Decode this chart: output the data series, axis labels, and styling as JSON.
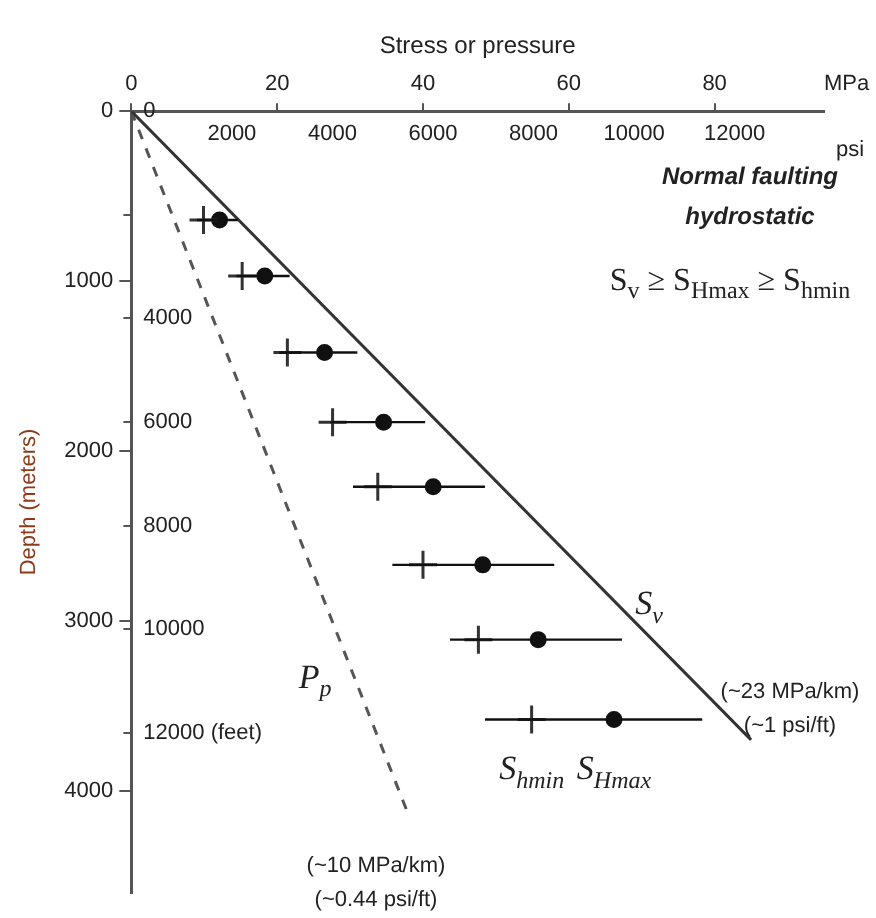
{
  "chart_data": {
    "type": "scatter",
    "xlabel": "Stress or pressure",
    "ylabel": "Depth (meters)",
    "xlim": [
      0,
      95
    ],
    "xticks": [
      0,
      20,
      40,
      60,
      80
    ],
    "x2lim": [
      0,
      13779
    ],
    "x2ticks": [
      2000,
      4000,
      6000,
      8000,
      10000,
      12000
    ],
    "ylim": [
      4600,
      0
    ],
    "yticks": [
      0,
      1000,
      2000,
      3000,
      4000
    ],
    "y2lim": [
      15092,
      0
    ],
    "y2ticks": [
      0,
      {
        "value": 2000,
        "label": null
      },
      4000,
      6000,
      8000,
      10000,
      {
        "value": 12000,
        "label": "12000 (feet)"
      }
    ],
    "grid": false,
    "legend": false,
    "series": [
      {
        "name": "S$_{v}$",
        "type": "line",
        "color": "#333333",
        "marker": "none",
        "line_style": "solid",
        "x": [
          0,
          85
        ],
        "values": [
          0,
          3700
        ]
      },
      {
        "name": "P$_{p}$",
        "type": "line",
        "color": "#555555",
        "marker": "none",
        "line_style": "dashed",
        "x": [
          0,
          38
        ],
        "values": [
          0,
          4140
        ]
      },
      {
        "name": "S$_{hmin}$",
        "type": "scatter",
        "color": "#333333",
        "marker": "cross",
        "x": [
          9.9,
          15.2,
          21.4,
          27.6,
          33.8,
          40.0,
          47.6,
          54.9
        ],
        "values": [
          640,
          970,
          1420,
          1830,
          2210,
          2670,
          3110,
          3580
        ]
      },
      {
        "name": "S$_{Hmax}$",
        "type": "scatter",
        "color": "#111111",
        "marker": "circle",
        "x": [
          12.1,
          18.3,
          26.5,
          34.6,
          41.4,
          48.2,
          55.8,
          66.2
        ],
        "values": [
          640,
          970,
          1420,
          1830,
          2210,
          2670,
          3110,
          3580
        ],
        "xerrors": [
          [
            9.0,
            14.6
          ],
          [
            14.4,
            21.7
          ],
          [
            20.3,
            31.0
          ],
          [
            27.3,
            40.3
          ],
          [
            30.4,
            48.5
          ],
          [
            35.8,
            58.0
          ],
          [
            43.7,
            67.3
          ],
          [
            48.5,
            78.3
          ]
        ]
      }
    ],
    "annotations": [
      "Normal faulting",
      "hydrostatic",
      "S$_{v}$ ≥ S$_{Hmax}$ ≥ S$_{hmin}$",
      "(~23 MPa/km)",
      "(~1 psi/ft)",
      "(~10 MPa/km)",
      "(~0.44 psi/ft)",
      "MPa",
      "psi"
    ]
  }
}
